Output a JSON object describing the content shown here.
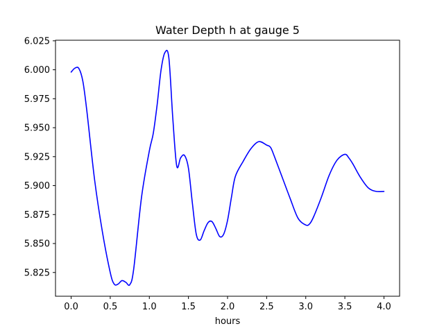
{
  "chart_data": {
    "type": "line",
    "title": "Water Depth h at gauge 5",
    "xlabel": "hours",
    "ylabel": "",
    "xlim": [
      -0.2,
      4.2
    ],
    "ylim": [
      5.8045,
      6.0255
    ],
    "grid": false,
    "legend": "none",
    "x_ticks": [
      0.0,
      0.5,
      1.0,
      1.5,
      2.0,
      2.5,
      3.0,
      3.5,
      4.0
    ],
    "x_tick_labels": [
      "0.0",
      "0.5",
      "1.0",
      "1.5",
      "2.0",
      "2.5",
      "3.0",
      "3.5",
      "4.0"
    ],
    "y_ticks": [
      5.825,
      5.85,
      5.875,
      5.9,
      5.925,
      5.95,
      5.975,
      6.0,
      6.025
    ],
    "y_tick_labels": [
      "5.825",
      "5.850",
      "5.875",
      "5.900",
      "5.925",
      "5.950",
      "5.975",
      "6.000",
      "6.025"
    ],
    "series": [
      {
        "color": "#0000ff",
        "x": [
          0.0,
          0.05,
          0.1,
          0.15,
          0.2,
          0.3,
          0.4,
          0.5,
          0.55,
          0.6,
          0.65,
          0.7,
          0.75,
          0.8,
          0.9,
          1.0,
          1.05,
          1.1,
          1.15,
          1.2,
          1.25,
          1.3,
          1.35,
          1.4,
          1.45,
          1.5,
          1.55,
          1.6,
          1.65,
          1.7,
          1.75,
          1.8,
          1.85,
          1.9,
          1.95,
          2.0,
          2.05,
          2.1,
          2.2,
          2.3,
          2.4,
          2.5,
          2.55,
          2.6,
          2.7,
          2.8,
          2.9,
          3.0,
          3.05,
          3.1,
          3.2,
          3.3,
          3.4,
          3.5,
          3.55,
          3.6,
          3.7,
          3.8,
          3.9,
          4.0
        ],
        "y": [
          5.998,
          6.0015,
          6.001,
          5.99,
          5.965,
          5.905,
          5.86,
          5.825,
          5.815,
          5.815,
          5.818,
          5.8165,
          5.8145,
          5.828,
          5.89,
          5.93,
          5.945,
          5.97,
          6.0,
          6.015,
          6.01,
          5.958,
          5.917,
          5.924,
          5.926,
          5.915,
          5.885,
          5.858,
          5.853,
          5.861,
          5.868,
          5.869,
          5.863,
          5.856,
          5.858,
          5.87,
          5.89,
          5.908,
          5.921,
          5.932,
          5.938,
          5.935,
          5.933,
          5.925,
          5.907,
          5.889,
          5.872,
          5.866,
          5.867,
          5.873,
          5.89,
          5.909,
          5.922,
          5.927,
          5.924,
          5.919,
          5.907,
          5.898,
          5.895,
          5.895
        ]
      }
    ]
  }
}
